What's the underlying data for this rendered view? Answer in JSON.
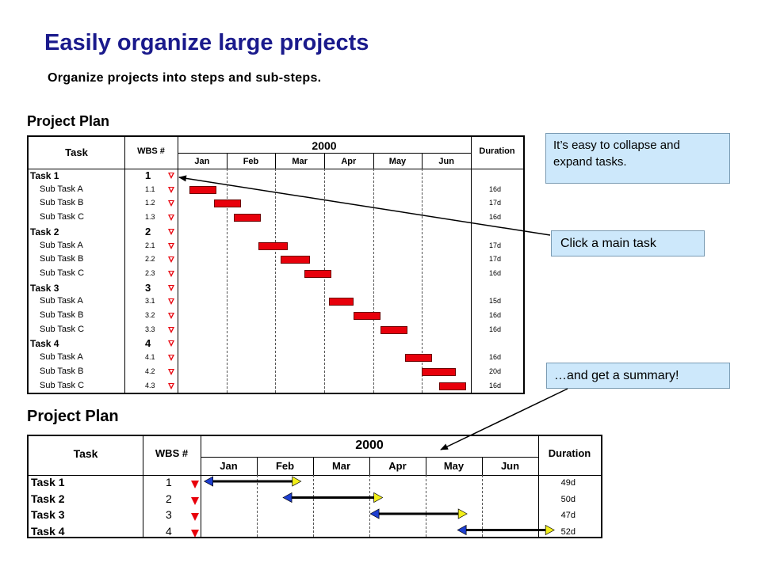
{
  "slide": {
    "title": "Easily organize large projects",
    "subtitle": "Organize projects into steps and sub-steps."
  },
  "callouts": {
    "collapse": "It’s easy to collapse and expand tasks.",
    "click": "Click a main task",
    "summary": "…and get a summary!"
  },
  "plan_detail": {
    "label": "Project Plan",
    "headers": {
      "task": "Task",
      "wbs": "WBS #",
      "year": "2000",
      "duration": "Duration"
    },
    "months": [
      "Jan",
      "Feb",
      "Mar",
      "Apr",
      "May",
      "Jun"
    ],
    "rows": [
      {
        "task": "Task 1",
        "wbs": "1",
        "level": 0,
        "duration": "",
        "start": null,
        "end": null
      },
      {
        "task": "Sub Task A",
        "wbs": "1.1",
        "level": 1,
        "duration": "16d",
        "start": 0.25,
        "end": 0.8
      },
      {
        "task": "Sub Task B",
        "wbs": "1.2",
        "level": 1,
        "duration": "17d",
        "start": 0.75,
        "end": 1.3
      },
      {
        "task": "Sub Task C",
        "wbs": "1.3",
        "level": 1,
        "duration": "16d",
        "start": 1.15,
        "end": 1.7
      },
      {
        "task": "Task 2",
        "wbs": "2",
        "level": 0,
        "duration": "",
        "start": null,
        "end": null
      },
      {
        "task": "Sub Task A",
        "wbs": "2.1",
        "level": 1,
        "duration": "17d",
        "start": 1.65,
        "end": 2.25
      },
      {
        "task": "Sub Task B",
        "wbs": "2.2",
        "level": 1,
        "duration": "17d",
        "start": 2.1,
        "end": 2.7
      },
      {
        "task": "Sub Task C",
        "wbs": "2.3",
        "level": 1,
        "duration": "16d",
        "start": 2.6,
        "end": 3.15
      },
      {
        "task": "Task 3",
        "wbs": "3",
        "level": 0,
        "duration": "",
        "start": null,
        "end": null
      },
      {
        "task": "Sub Task A",
        "wbs": "3.1",
        "level": 1,
        "duration": "15d",
        "start": 3.1,
        "end": 3.6
      },
      {
        "task": "Sub Task B",
        "wbs": "3.2",
        "level": 1,
        "duration": "16d",
        "start": 3.6,
        "end": 4.15
      },
      {
        "task": "Sub Task C",
        "wbs": "3.3",
        "level": 1,
        "duration": "16d",
        "start": 4.15,
        "end": 4.7
      },
      {
        "task": "Task 4",
        "wbs": "4",
        "level": 0,
        "duration": "",
        "start": null,
        "end": null
      },
      {
        "task": "Sub Task A",
        "wbs": "4.1",
        "level": 1,
        "duration": "16d",
        "start": 4.65,
        "end": 5.2
      },
      {
        "task": "Sub Task B",
        "wbs": "4.2",
        "level": 1,
        "duration": "20d",
        "start": 5.0,
        "end": 5.7
      },
      {
        "task": "Sub Task C",
        "wbs": "4.3",
        "level": 1,
        "duration": "16d",
        "start": 5.35,
        "end": 5.9
      }
    ]
  },
  "plan_summary": {
    "label": "Project Plan",
    "headers": {
      "task": "Task",
      "wbs": "WBS #",
      "year": "2000",
      "duration": "Duration"
    },
    "months": [
      "Jan",
      "Feb",
      "Mar",
      "Apr",
      "May",
      "Jun"
    ],
    "rows": [
      {
        "task": "Task 1",
        "wbs": "1",
        "duration": "49d",
        "start": 0.15,
        "end": 1.7
      },
      {
        "task": "Task 2",
        "wbs": "2",
        "duration": "50d",
        "start": 1.55,
        "end": 3.15
      },
      {
        "task": "Task 3",
        "wbs": "3",
        "duration": "47d",
        "start": 3.1,
        "end": 4.65
      },
      {
        "task": "Task 4",
        "wbs": "4",
        "duration": "52d",
        "start": 4.65,
        "end": 6.2
      }
    ]
  },
  "colors": {
    "title": "#1a1a8c",
    "bar": "#e8000b",
    "start_marker": "#1e3fd0",
    "end_marker": "#f2ef1a",
    "callout_bg": "#cde8fb",
    "expand_marker": "#e8000b"
  },
  "icons": {
    "collapse": "open-triangle-down-icon",
    "expand": "filled-triangle-down-icon"
  }
}
